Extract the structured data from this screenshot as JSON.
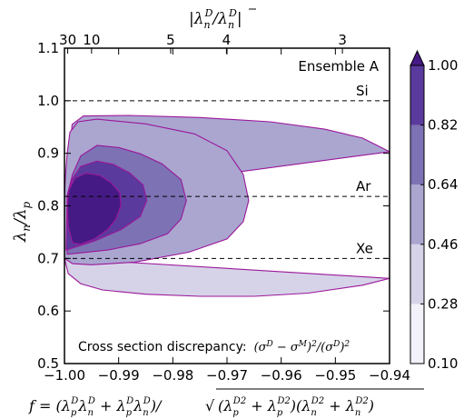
{
  "chart_data": {
    "type": "contour",
    "annotation": "Ensemble A",
    "note_text": "Cross section discrepancy:",
    "note_formula": "(σ^D − σ^M)^2/(σ^D)^2",
    "xlabel": "f = (λ_p^D λ_n^D + λ_p^D̄ λ_n^D̄) / sqrt((λ_p^D2 + λ_p^D̄2)(λ_n^D2 + λ_n^D̄2))",
    "ylabel": "λ_n/λ_p",
    "top_axis_label": "|λ_n^D / λ_n^D̄|",
    "xlim": [
      -1.0,
      -0.94
    ],
    "ylim": [
      0.5,
      1.1
    ],
    "x_ticks": [
      -1.0,
      -0.99,
      -0.98,
      -0.97,
      -0.96,
      -0.95,
      -0.94
    ],
    "x_tick_labels": [
      "−1.00",
      "−0.99",
      "−0.98",
      "−0.97",
      "−0.96",
      "−0.95",
      "−0.94"
    ],
    "y_ticks": [
      0.5,
      0.6,
      0.7,
      0.8,
      0.9,
      1.0,
      1.1
    ],
    "y_tick_labels": [
      "0.5",
      "0.6",
      "0.7",
      "0.8",
      "0.9",
      "1.0",
      "1.1"
    ],
    "top_ticks": [
      {
        "label": "30",
        "x": -0.9994
      },
      {
        "label": "10",
        "x": -0.995
      },
      {
        "label": "5",
        "x": -0.9804
      },
      {
        "label": "4",
        "x": -0.9701
      },
      {
        "label": "3",
        "x": -0.9487
      }
    ],
    "reference_lines": [
      {
        "label": "Si",
        "y": 1.0
      },
      {
        "label": "Ar",
        "y": 0.818
      },
      {
        "label": "Xe",
        "y": 0.7
      }
    ],
    "colorbar": {
      "levels": [
        0.1,
        0.28,
        0.46,
        0.64,
        0.82,
        1.0
      ],
      "labels": [
        "0.10",
        "0.28",
        "0.46",
        "0.64",
        "0.82",
        "1.00"
      ],
      "colors": [
        "#f3f1f9",
        "#d6d3e8",
        "#aaa6d0",
        "#7c72b4",
        "#5b3a9d",
        "#461a85"
      ],
      "extend": "max"
    },
    "contour_color": "#9b179a",
    "contours": [
      {
        "level": 0.1,
        "band": 0,
        "points": [
          [
            -1.0,
            0.7
          ],
          [
            -0.9993,
            0.671
          ],
          [
            -0.997,
            0.652
          ],
          [
            -0.993,
            0.64
          ],
          [
            -0.985,
            0.632
          ],
          [
            -0.975,
            0.628
          ],
          [
            -0.965,
            0.628
          ],
          [
            -0.955,
            0.634
          ],
          [
            -0.945,
            0.649
          ],
          [
            -0.94,
            0.662
          ]
        ]
      },
      {
        "level": 0.28,
        "band": 1,
        "points": [
          [
            -0.94,
            0.903
          ],
          [
            -0.945,
            0.929
          ],
          [
            -0.952,
            0.946
          ],
          [
            -0.962,
            0.96
          ],
          [
            -0.975,
            0.968
          ],
          [
            -0.988,
            0.972
          ],
          [
            -0.9965,
            0.971
          ],
          [
            -0.9986,
            0.955
          ],
          [
            -0.9993,
            0.87
          ],
          [
            -0.9996,
            0.84
          ],
          [
            -0.9998,
            0.825
          ],
          [
            -1.0,
            0.82
          ]
        ]
      },
      {
        "level": 0.28,
        "band": 1,
        "points": [
          [
            -1.0,
            0.82
          ],
          [
            -0.9998,
            0.86
          ],
          [
            -0.9995,
            0.9
          ],
          [
            -0.999,
            0.94
          ],
          [
            -0.9975,
            0.96
          ],
          [
            -0.994,
            0.965
          ],
          [
            -0.985,
            0.956
          ],
          [
            -0.976,
            0.937
          ],
          [
            -0.97,
            0.905
          ],
          [
            -0.967,
            0.86
          ],
          [
            -0.966,
            0.81
          ],
          [
            -0.967,
            0.77
          ],
          [
            -0.97,
            0.737
          ],
          [
            -0.977,
            0.712
          ],
          [
            -0.987,
            0.693
          ],
          [
            -0.995,
            0.688
          ],
          [
            -0.9985,
            0.69
          ],
          [
            -1.0,
            0.7
          ]
        ]
      },
      {
        "level": 0.46,
        "band": 2,
        "points": [
          [
            -0.9995,
            0.82
          ],
          [
            -0.9985,
            0.86
          ],
          [
            -0.997,
            0.895
          ],
          [
            -0.994,
            0.915
          ],
          [
            -0.99,
            0.911
          ],
          [
            -0.986,
            0.899
          ],
          [
            -0.982,
            0.88
          ],
          [
            -0.9785,
            0.85
          ],
          [
            -0.9775,
            0.81
          ],
          [
            -0.9785,
            0.775
          ],
          [
            -0.981,
            0.747
          ],
          [
            -0.986,
            0.728
          ],
          [
            -0.992,
            0.716
          ],
          [
            -0.9975,
            0.71
          ],
          [
            -0.9995,
            0.708
          ]
        ]
      },
      {
        "level": 0.64,
        "band": 3,
        "points": [
          [
            -0.9995,
            0.82
          ],
          [
            -0.9985,
            0.852
          ],
          [
            -0.997,
            0.875
          ],
          [
            -0.994,
            0.885
          ],
          [
            -0.991,
            0.879
          ],
          [
            -0.988,
            0.863
          ],
          [
            -0.9855,
            0.84
          ],
          [
            -0.9848,
            0.81
          ],
          [
            -0.986,
            0.78
          ],
          [
            -0.9895,
            0.755
          ],
          [
            -0.9945,
            0.733
          ],
          [
            -0.9985,
            0.72
          ],
          [
            -0.9997,
            0.716
          ]
        ]
      },
      {
        "level": 0.82,
        "band": 4,
        "points": [
          [
            -0.9992,
            0.83
          ],
          [
            -0.998,
            0.853
          ],
          [
            -0.996,
            0.862
          ],
          [
            -0.9935,
            0.858
          ],
          [
            -0.9915,
            0.845
          ],
          [
            -0.9898,
            0.825
          ],
          [
            -0.9896,
            0.8
          ],
          [
            -0.9905,
            0.775
          ],
          [
            -0.992,
            0.755
          ],
          [
            -0.9945,
            0.737
          ],
          [
            -0.997,
            0.727
          ],
          [
            -0.9985,
            0.73
          ],
          [
            -0.9993,
            0.76
          ],
          [
            -0.9995,
            0.8
          ]
        ]
      }
    ]
  }
}
